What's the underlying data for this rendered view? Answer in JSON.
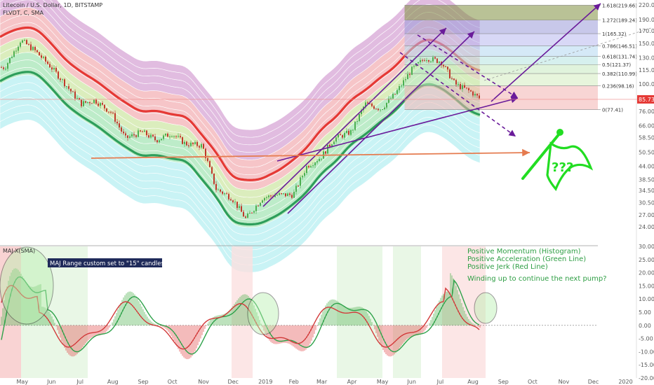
{
  "chart_data": [
    {
      "type": "line",
      "title": "Litecoin / U.S. Dollar, 1D, BITSTAMP",
      "indicator_label": "FLVDT, C, SMA",
      "y_scale": "log",
      "ylim": [
        20,
        225
      ],
      "y_ticks": [
        "220.00",
        "190.00",
        "170.00",
        "150.00",
        "130.00",
        "115.00",
        "100.00",
        "85.73",
        "76.00",
        "66.00",
        "58.50",
        "50.50",
        "44.00",
        "38.50",
        "34.50",
        "30.50",
        "27.00",
        "24.00"
      ],
      "current_price_label": "85.73",
      "x_ticks": [
        "May",
        "Jun",
        "Jul",
        "Aug",
        "Sep",
        "Oct",
        "Nov",
        "Dec",
        "2019",
        "Feb",
        "Mar",
        "Apr",
        "May",
        "Jun",
        "Jul",
        "Aug",
        "Sep",
        "Oct",
        "Nov",
        "Dec",
        "2020"
      ],
      "series": [
        {
          "x": [
            "2018-04-15",
            "2018-05-01",
            "2018-05-15",
            "2018-06-01",
            "2018-06-15",
            "2018-07-01",
            "2018-07-15",
            "2018-08-01",
            "2018-08-15",
            "2018-09-01",
            "2018-09-15",
            "2018-10-01",
            "2018-10-15",
            "2018-11-01",
            "2018-11-15",
            "2018-12-01",
            "2018-12-15",
            "2019-01-01",
            "2019-01-15",
            "2019-02-01",
            "2019-02-15",
            "2019-03-01",
            "2019-03-15",
            "2019-04-01",
            "2019-04-15",
            "2019-05-01",
            "2019-05-15",
            "2019-06-01",
            "2019-06-15",
            "2019-07-01",
            "2019-07-15",
            "2019-08-01",
            "2019-08-10"
          ],
          "values": [
            118,
            155,
            140,
            118,
            100,
            82,
            85,
            75,
            58,
            62,
            57,
            61,
            55,
            54,
            35,
            32,
            26,
            32,
            33,
            33,
            44,
            48,
            58,
            62,
            82,
            78,
            90,
            115,
            130,
            125,
            100,
            92,
            85.73
          ]
        }
      ],
      "fib_levels": [
        {
          "label": "1.618(219.66)",
          "value": 219.66
        },
        {
          "label": "1.272(189.24)",
          "value": 189.24
        },
        {
          "label": "1(165.32)",
          "value": 165.32
        },
        {
          "label": "0.786(146.51)",
          "value": 146.51
        },
        {
          "label": "0.618(131.74)",
          "value": 131.74
        },
        {
          "label": "0.5(121.37)",
          "value": 121.37
        },
        {
          "label": "0.382(110.99)",
          "value": 110.99
        },
        {
          "label": "0.236(98.16)",
          "value": 98.16
        },
        {
          "label": "0(77.41)",
          "value": 77.41
        }
      ],
      "flag_text": "???",
      "colors": {
        "candle_up": "#4caf50",
        "candle_down": "#c0392b",
        "arrow": "#6a1b9a",
        "trend": "#e57b4f",
        "flag": "#22dd22",
        "band_red": "#e53935",
        "band_green": "#2e9e5b"
      }
    },
    {
      "type": "area",
      "title": "MAJ-X(SMA)",
      "note": "MAJ Range custom set to \"15\" candles",
      "annotation_lines": [
        "Positive Momentum (Histogram)",
        "Positive Acceleration (Green Line)",
        "Positive Jerk (Red Line)",
        "",
        "Winding up to continue the next pump?"
      ],
      "y_ticks": [
        "30.00",
        "25.00",
        "20.00",
        "15.00",
        "10.00",
        "5.00",
        "0.00",
        "-5.00",
        "-10.00",
        "-15.00",
        "-20.00"
      ],
      "ylim": [
        -20,
        30
      ]
    }
  ]
}
